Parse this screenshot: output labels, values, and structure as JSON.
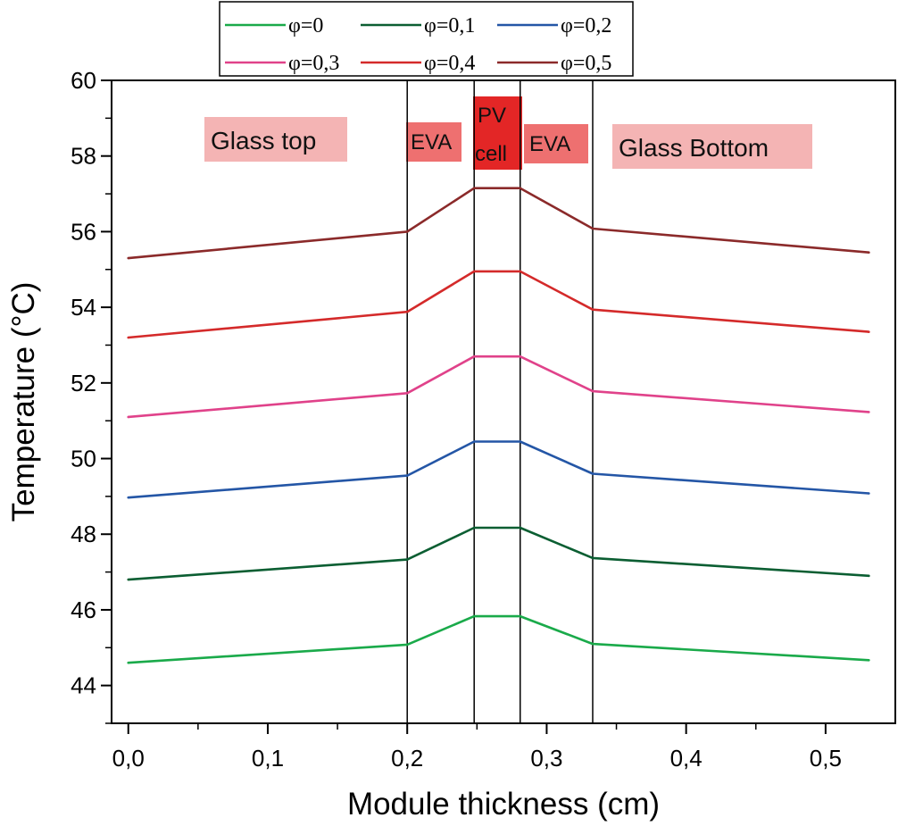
{
  "chart_data": {
    "type": "line",
    "xlabel": "Module thickness (cm)",
    "ylabel": "Temperature (°C)",
    "xlim": [
      -0.012,
      0.55
    ],
    "ylim": [
      43,
      60
    ],
    "x_ticks": [
      0.0,
      0.1,
      0.2,
      0.3,
      0.4,
      0.5
    ],
    "x_tick_labels": [
      "0,0",
      "0,1",
      "0,2",
      "0,3",
      "0,4",
      "0,5"
    ],
    "y_ticks": [
      44,
      46,
      48,
      50,
      52,
      54,
      56,
      58,
      60
    ],
    "y_tick_labels": [
      "44",
      "46",
      "48",
      "50",
      "52",
      "54",
      "56",
      "58",
      "60"
    ],
    "x": [
      0.0,
      0.2,
      0.248,
      0.281,
      0.333,
      0.531
    ],
    "series": [
      {
        "name": "φ=0",
        "color": "#1aaa4a",
        "values": [
          44.6,
          45.08,
          45.83,
          45.83,
          45.1,
          44.67
        ]
      },
      {
        "name": "φ=0,1",
        "color": "#0b5e32",
        "values": [
          46.8,
          47.33,
          48.17,
          48.17,
          47.37,
          46.9
        ]
      },
      {
        "name": "φ=0,2",
        "color": "#2456a6",
        "values": [
          48.97,
          49.55,
          50.45,
          50.45,
          49.6,
          49.08
        ]
      },
      {
        "name": "φ=0,3",
        "color": "#e0428a",
        "values": [
          51.1,
          51.73,
          52.7,
          52.7,
          51.78,
          51.23
        ]
      },
      {
        "name": "φ=0,4",
        "color": "#d42a2a",
        "values": [
          53.2,
          53.88,
          54.95,
          54.95,
          53.94,
          53.35
        ]
      },
      {
        "name": "φ=0,5",
        "color": "#8b2a2a",
        "values": [
          55.3,
          56.0,
          57.15,
          57.15,
          56.08,
          55.45
        ]
      }
    ],
    "layer_boundaries": [
      0.2,
      0.248,
      0.281,
      0.333
    ],
    "regions": [
      {
        "label": "Glass top",
        "bg": "#f4b4b4"
      },
      {
        "label": "EVA",
        "bg": "#ee7070"
      },
      {
        "label": "PV",
        "label2": "cell",
        "bg": "#e32626"
      },
      {
        "label": "EVA",
        "bg": "#ee7070"
      },
      {
        "label": "Glass Bottom",
        "bg": "#f4b4b4"
      }
    ],
    "legend": {
      "position": "top-center",
      "columns": 3
    }
  }
}
